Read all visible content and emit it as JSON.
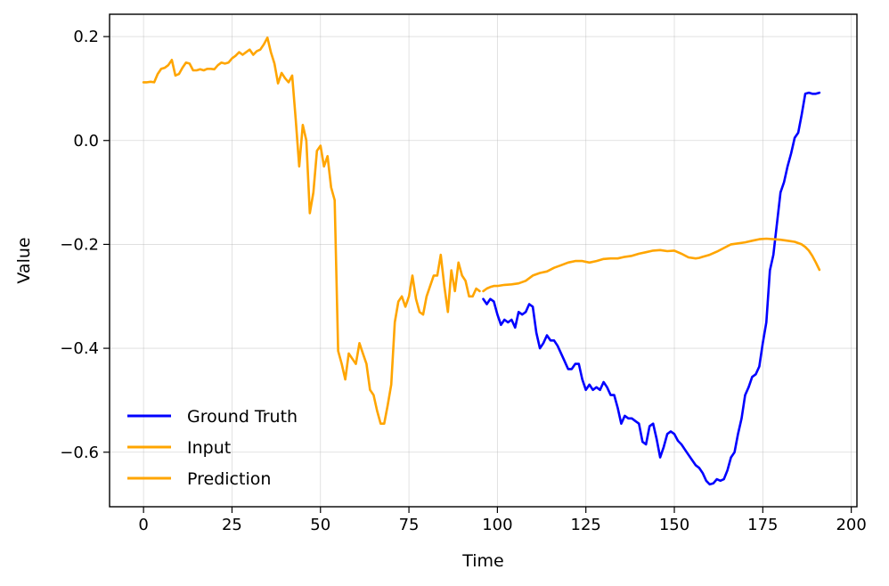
{
  "chart_data": {
    "type": "line",
    "title": "",
    "xlabel": "Time",
    "ylabel": "Value",
    "xlim": [
      -9.6,
      201.6
    ],
    "ylim": [
      -0.705,
      0.243
    ],
    "xticks": [
      0,
      25,
      50,
      75,
      100,
      125,
      150,
      175,
      200
    ],
    "xtick_labels": [
      "0",
      "25",
      "50",
      "75",
      "100",
      "125",
      "150",
      "175",
      "200"
    ],
    "yticks": [
      0.2,
      0.0,
      -0.2,
      -0.4,
      -0.6
    ],
    "ytick_labels": [
      "0.2",
      "0.0",
      "−0.2",
      "−0.4",
      "−0.6"
    ],
    "grid": true,
    "legend_position": "lower-left",
    "series": [
      {
        "name": "Ground Truth",
        "color": "#0000ff",
        "x": [
          96,
          97,
          98,
          99,
          100,
          101,
          102,
          103,
          104,
          105,
          106,
          107,
          108,
          109,
          110,
          111,
          112,
          113,
          114,
          115,
          116,
          117,
          118,
          119,
          120,
          121,
          122,
          123,
          124,
          125,
          126,
          127,
          128,
          129,
          130,
          131,
          132,
          133,
          134,
          135,
          136,
          137,
          138,
          139,
          140,
          141,
          142,
          143,
          144,
          145,
          146,
          147,
          148,
          149,
          150,
          151,
          152,
          153,
          154,
          155,
          156,
          157,
          158,
          159,
          160,
          161,
          162,
          163,
          164,
          165,
          166,
          167,
          168,
          169,
          170,
          171,
          172,
          173,
          174,
          175,
          176,
          177,
          178,
          179,
          180,
          181,
          182,
          183,
          184,
          185,
          186,
          187,
          188,
          189,
          190,
          191
        ],
        "y": [
          -0.305,
          -0.315,
          -0.305,
          -0.31,
          -0.335,
          -0.355,
          -0.345,
          -0.35,
          -0.345,
          -0.36,
          -0.33,
          -0.335,
          -0.33,
          -0.315,
          -0.32,
          -0.37,
          -0.4,
          -0.39,
          -0.375,
          -0.385,
          -0.385,
          -0.395,
          -0.41,
          -0.425,
          -0.44,
          -0.44,
          -0.43,
          -0.43,
          -0.46,
          -0.48,
          -0.47,
          -0.48,
          -0.475,
          -0.48,
          -0.465,
          -0.475,
          -0.49,
          -0.49,
          -0.515,
          -0.545,
          -0.53,
          -0.535,
          -0.535,
          -0.54,
          -0.545,
          -0.58,
          -0.585,
          -0.55,
          -0.545,
          -0.575,
          -0.61,
          -0.59,
          -0.565,
          -0.56,
          -0.565,
          -0.578,
          -0.585,
          -0.595,
          -0.605,
          -0.615,
          -0.625,
          -0.63,
          -0.64,
          -0.655,
          -0.662,
          -0.66,
          -0.652,
          -0.655,
          -0.652,
          -0.635,
          -0.61,
          -0.6,
          -0.565,
          -0.535,
          -0.49,
          -0.475,
          -0.455,
          -0.45,
          -0.435,
          -0.39,
          -0.35,
          -0.25,
          -0.22,
          -0.16,
          -0.1,
          -0.08,
          -0.05,
          -0.025,
          0.005,
          0.015,
          0.05,
          0.09,
          0.092,
          0.09,
          0.09,
          0.092
        ]
      },
      {
        "name": "Input",
        "color": "#ffa500",
        "x": [
          0,
          1,
          2,
          3,
          4,
          5,
          6,
          7,
          8,
          9,
          10,
          11,
          12,
          13,
          14,
          15,
          16,
          17,
          18,
          19,
          20,
          21,
          22,
          23,
          24,
          25,
          26,
          27,
          28,
          29,
          30,
          31,
          32,
          33,
          34,
          35,
          36,
          37,
          38,
          39,
          40,
          41,
          42,
          43,
          44,
          45,
          46,
          47,
          48,
          49,
          50,
          51,
          52,
          53,
          54,
          55,
          56,
          57,
          58,
          59,
          60,
          61,
          62,
          63,
          64,
          65,
          66,
          67,
          68,
          69,
          70,
          71,
          72,
          73,
          74,
          75,
          76,
          77,
          78,
          79,
          80,
          81,
          82,
          83,
          84,
          85,
          86,
          87,
          88,
          89,
          90,
          91,
          92,
          93,
          94,
          95
        ],
        "y": [
          0.112,
          0.112,
          0.113,
          0.112,
          0.128,
          0.138,
          0.14,
          0.145,
          0.155,
          0.125,
          0.128,
          0.14,
          0.15,
          0.148,
          0.135,
          0.135,
          0.137,
          0.135,
          0.138,
          0.138,
          0.137,
          0.145,
          0.15,
          0.148,
          0.15,
          0.158,
          0.163,
          0.17,
          0.165,
          0.17,
          0.175,
          0.165,
          0.172,
          0.175,
          0.185,
          0.198,
          0.17,
          0.148,
          0.11,
          0.13,
          0.12,
          0.112,
          0.125,
          0.04,
          -0.05,
          0.03,
          0.0,
          -0.14,
          -0.1,
          -0.02,
          -0.01,
          -0.05,
          -0.03,
          -0.09,
          -0.115,
          -0.405,
          -0.43,
          -0.46,
          -0.41,
          -0.42,
          -0.43,
          -0.39,
          -0.41,
          -0.43,
          -0.48,
          -0.49,
          -0.52,
          -0.545,
          -0.545,
          -0.51,
          -0.47,
          -0.35,
          -0.31,
          -0.3,
          -0.32,
          -0.3,
          -0.26,
          -0.305,
          -0.33,
          -0.335,
          -0.3,
          -0.28,
          -0.26,
          -0.26,
          -0.22,
          -0.28,
          -0.33,
          -0.25,
          -0.29,
          -0.235,
          -0.26,
          -0.27,
          -0.3,
          -0.3,
          -0.285,
          -0.29
        ]
      },
      {
        "name": "Prediction",
        "color": "#ffa500",
        "x": [
          96,
          97,
          98,
          99,
          100,
          102,
          104,
          106,
          108,
          110,
          112,
          114,
          116,
          118,
          120,
          122,
          124,
          126,
          128,
          130,
          132,
          134,
          136,
          138,
          140,
          142,
          144,
          146,
          148,
          150,
          152,
          154,
          156,
          157,
          158,
          160,
          162,
          164,
          166,
          168,
          170,
          172,
          174,
          176,
          178,
          180,
          182,
          184,
          186,
          187,
          188,
          189,
          190,
          191
        ],
        "y": [
          -0.29,
          -0.285,
          -0.282,
          -0.28,
          -0.28,
          -0.278,
          -0.277,
          -0.275,
          -0.27,
          -0.26,
          -0.255,
          -0.252,
          -0.245,
          -0.24,
          -0.235,
          -0.232,
          -0.232,
          -0.235,
          -0.232,
          -0.228,
          -0.227,
          -0.227,
          -0.224,
          -0.222,
          -0.218,
          -0.215,
          -0.212,
          -0.211,
          -0.213,
          -0.212,
          -0.218,
          -0.225,
          -0.227,
          -0.226,
          -0.224,
          -0.22,
          -0.214,
          -0.207,
          -0.2,
          -0.198,
          -0.196,
          -0.193,
          -0.19,
          -0.189,
          -0.19,
          -0.191,
          -0.193,
          -0.195,
          -0.2,
          -0.205,
          -0.212,
          -0.222,
          -0.235,
          -0.249
        ]
      }
    ]
  }
}
